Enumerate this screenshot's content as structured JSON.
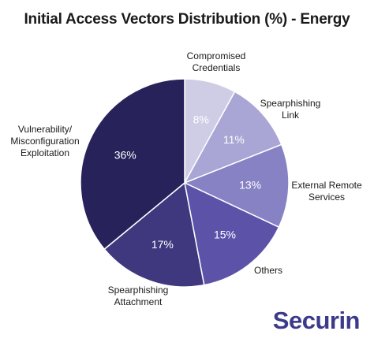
{
  "chart_data": {
    "type": "pie",
    "title": "Initial Access Vectors Distribution (%) - Energy",
    "slices": [
      {
        "label": [
          "Compromised",
          "Credentials"
        ],
        "value": 8,
        "value_label": "8%",
        "color": "#cfcde6",
        "text_color": "#ffffff"
      },
      {
        "label": [
          "Spearphishing",
          "Link"
        ],
        "value": 11,
        "value_label": "11%",
        "color": "#a9a5d4",
        "text_color": "#ffffff"
      },
      {
        "label": [
          "External Remote",
          "Services"
        ],
        "value": 13,
        "value_label": "13%",
        "color": "#8782c3",
        "text_color": "#ffffff"
      },
      {
        "label": [
          "Others"
        ],
        "value": 15,
        "value_label": "15%",
        "color": "#5c53a9",
        "text_color": "#ffffff"
      },
      {
        "label": [
          "Spearphishing",
          "Attachment"
        ],
        "value": 17,
        "value_label": "17%",
        "color": "#3f387f",
        "text_color": "#ffffff"
      },
      {
        "label": [
          "Vulnerability/",
          "Misconfiguration",
          "Exploitation"
        ],
        "value": 36,
        "value_label": "36%",
        "color": "#27225a",
        "text_color": "#ffffff"
      }
    ]
  },
  "brand": {
    "logo_text": "Securin",
    "logo_color": "#3d3a8c"
  }
}
